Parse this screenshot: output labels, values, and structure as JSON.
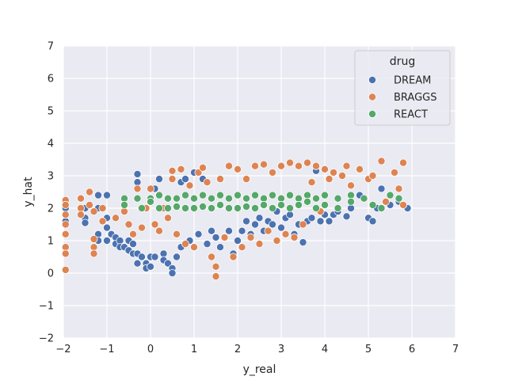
{
  "chart_data": {
    "type": "scatter",
    "xlabel": "y_real",
    "ylabel": "y_hat",
    "xlim": [
      -2,
      7
    ],
    "ylim": [
      -2,
      7
    ],
    "xticks": [
      -2,
      -1,
      0,
      1,
      2,
      3,
      4,
      5,
      6,
      7
    ],
    "yticks": [
      -2,
      -1,
      0,
      1,
      2,
      3,
      4,
      5,
      6,
      7
    ],
    "grid": true,
    "background": "#eaeaf2",
    "legend": {
      "title": "drug",
      "placement": "top-right"
    },
    "series": [
      {
        "name": "DREAM",
        "color": "#4c72b0",
        "points": [
          [
            -1.95,
            2.0
          ],
          [
            -1.95,
            1.6
          ],
          [
            -1.5,
            2.0
          ],
          [
            -1.5,
            1.7
          ],
          [
            -1.5,
            1.55
          ],
          [
            -1.2,
            2.4
          ],
          [
            -1.2,
            2.0
          ],
          [
            -1.2,
            1.2
          ],
          [
            -1.2,
            1.0
          ],
          [
            -1.0,
            2.4
          ],
          [
            -1.0,
            1.7
          ],
          [
            -1.0,
            1.4
          ],
          [
            -1.0,
            1.0
          ],
          [
            -0.9,
            1.2
          ],
          [
            -0.8,
            1.1
          ],
          [
            -0.8,
            0.9
          ],
          [
            -0.7,
            1.0
          ],
          [
            -0.7,
            0.8
          ],
          [
            -0.6,
            0.8
          ],
          [
            -0.5,
            1.0
          ],
          [
            -0.5,
            0.7
          ],
          [
            -0.4,
            0.9
          ],
          [
            -0.4,
            0.6
          ],
          [
            -0.3,
            3.05
          ],
          [
            -0.3,
            2.8
          ],
          [
            -0.3,
            0.6
          ],
          [
            -0.3,
            0.3
          ],
          [
            -0.2,
            0.5
          ],
          [
            -0.1,
            0.3
          ],
          [
            -0.1,
            0.15
          ],
          [
            0.0,
            0.5
          ],
          [
            0.0,
            0.2
          ],
          [
            0.1,
            2.6
          ],
          [
            0.1,
            0.5
          ],
          [
            0.2,
            2.9
          ],
          [
            0.3,
            0.6
          ],
          [
            0.3,
            0.4
          ],
          [
            0.4,
            0.3
          ],
          [
            0.5,
            0.15
          ],
          [
            0.5,
            0.0
          ],
          [
            0.6,
            0.5
          ],
          [
            0.7,
            0.8
          ],
          [
            0.7,
            2.8
          ],
          [
            0.8,
            2.9
          ],
          [
            0.9,
            1.0
          ],
          [
            1.0,
            3.1
          ],
          [
            1.0,
            0.8
          ],
          [
            1.1,
            1.2
          ],
          [
            1.2,
            2.9
          ],
          [
            1.3,
            0.9
          ],
          [
            1.4,
            1.3
          ],
          [
            1.5,
            1.1
          ],
          [
            1.6,
            0.8
          ],
          [
            1.7,
            1.1
          ],
          [
            1.8,
            1.3
          ],
          [
            1.9,
            0.6
          ],
          [
            2.0,
            1.0
          ],
          [
            2.1,
            1.3
          ],
          [
            2.2,
            1.6
          ],
          [
            2.3,
            1.2
          ],
          [
            2.4,
            1.5
          ],
          [
            2.5,
            1.7
          ],
          [
            2.6,
            1.3
          ],
          [
            2.7,
            1.6
          ],
          [
            2.8,
            1.5
          ],
          [
            2.9,
            1.9
          ],
          [
            3.0,
            1.4
          ],
          [
            3.1,
            1.7
          ],
          [
            3.2,
            1.8
          ],
          [
            3.3,
            1.2
          ],
          [
            3.4,
            1.5
          ],
          [
            3.5,
            0.95
          ],
          [
            3.6,
            1.6
          ],
          [
            3.7,
            1.7
          ],
          [
            3.8,
            3.15
          ],
          [
            3.9,
            1.6
          ],
          [
            4.0,
            1.8
          ],
          [
            4.1,
            1.6
          ],
          [
            4.2,
            1.8
          ],
          [
            4.3,
            1.9
          ],
          [
            4.5,
            1.75
          ],
          [
            4.6,
            2.0
          ],
          [
            4.8,
            2.4
          ],
          [
            5.0,
            1.7
          ],
          [
            5.1,
            1.6
          ],
          [
            5.2,
            2.0
          ],
          [
            5.3,
            2.6
          ],
          [
            5.5,
            2.1
          ],
          [
            5.7,
            2.2
          ],
          [
            5.9,
            2.0
          ]
        ]
      },
      {
        "name": "BRAGGS",
        "color": "#dd8452",
        "points": [
          [
            -1.95,
            2.25
          ],
          [
            -1.95,
            2.1
          ],
          [
            -1.95,
            1.8
          ],
          [
            -1.95,
            1.5
          ],
          [
            -1.95,
            1.2
          ],
          [
            -1.95,
            0.8
          ],
          [
            -1.95,
            0.6
          ],
          [
            -1.95,
            0.1
          ],
          [
            -1.6,
            2.3
          ],
          [
            -1.6,
            2.0
          ],
          [
            -1.6,
            1.8
          ],
          [
            -1.4,
            2.5
          ],
          [
            -1.4,
            2.1
          ],
          [
            -1.3,
            1.9
          ],
          [
            -1.3,
            0.8
          ],
          [
            -1.3,
            0.6
          ],
          [
            -1.3,
            1.05
          ],
          [
            -1.1,
            2.0
          ],
          [
            -1.1,
            1.6
          ],
          [
            -0.8,
            1.7
          ],
          [
            -0.6,
            1.9
          ],
          [
            -0.5,
            1.5
          ],
          [
            -0.4,
            1.2
          ],
          [
            -0.3,
            2.6
          ],
          [
            -0.2,
            1.4
          ],
          [
            -0.1,
            2.0
          ],
          [
            0.0,
            2.3
          ],
          [
            0.0,
            2.6
          ],
          [
            0.1,
            1.5
          ],
          [
            0.2,
            1.3
          ],
          [
            0.3,
            2.0
          ],
          [
            0.4,
            1.7
          ],
          [
            0.5,
            3.15
          ],
          [
            0.5,
            2.9
          ],
          [
            0.6,
            1.2
          ],
          [
            0.7,
            3.2
          ],
          [
            0.8,
            0.9
          ],
          [
            0.9,
            2.7
          ],
          [
            1.0,
            0.8
          ],
          [
            1.1,
            3.1
          ],
          [
            1.2,
            3.25
          ],
          [
            1.3,
            2.8
          ],
          [
            1.4,
            0.5
          ],
          [
            1.5,
            -0.1
          ],
          [
            1.5,
            0.2
          ],
          [
            1.6,
            2.9
          ],
          [
            1.7,
            1.1
          ],
          [
            1.8,
            3.3
          ],
          [
            1.9,
            0.5
          ],
          [
            2.0,
            3.2
          ],
          [
            2.1,
            0.8
          ],
          [
            2.2,
            2.9
          ],
          [
            2.3,
            1.1
          ],
          [
            2.4,
            3.3
          ],
          [
            2.5,
            0.9
          ],
          [
            2.6,
            3.35
          ],
          [
            2.7,
            1.3
          ],
          [
            2.8,
            3.1
          ],
          [
            2.9,
            1.0
          ],
          [
            3.0,
            3.3
          ],
          [
            3.1,
            1.2
          ],
          [
            3.2,
            3.4
          ],
          [
            3.3,
            1.1
          ],
          [
            3.4,
            3.3
          ],
          [
            3.5,
            1.5
          ],
          [
            3.6,
            3.4
          ],
          [
            3.7,
            2.8
          ],
          [
            3.8,
            3.3
          ],
          [
            3.9,
            1.9
          ],
          [
            4.0,
            3.2
          ],
          [
            4.1,
            2.9
          ],
          [
            4.2,
            3.1
          ],
          [
            4.3,
            2.0
          ],
          [
            4.4,
            3.0
          ],
          [
            4.5,
            3.3
          ],
          [
            4.6,
            2.7
          ],
          [
            4.8,
            3.2
          ],
          [
            5.0,
            2.9
          ],
          [
            5.1,
            3.0
          ],
          [
            5.3,
            3.45
          ],
          [
            5.4,
            2.2
          ],
          [
            5.6,
            3.1
          ],
          [
            5.7,
            2.6
          ],
          [
            5.8,
            3.4
          ],
          [
            5.8,
            2.1
          ]
        ]
      },
      {
        "name": "REACT",
        "color": "#55a868",
        "points": [
          [
            -0.6,
            2.3
          ],
          [
            -0.6,
            2.1
          ],
          [
            -0.3,
            2.3
          ],
          [
            -0.2,
            2.0
          ],
          [
            0.0,
            2.3
          ],
          [
            0.0,
            2.2
          ],
          [
            0.2,
            2.4
          ],
          [
            0.2,
            2.0
          ],
          [
            0.4,
            2.3
          ],
          [
            0.4,
            2.0
          ],
          [
            0.6,
            2.3
          ],
          [
            0.6,
            2.05
          ],
          [
            0.8,
            2.4
          ],
          [
            0.8,
            2.0
          ],
          [
            1.0,
            2.3
          ],
          [
            1.0,
            2.0
          ],
          [
            1.2,
            2.4
          ],
          [
            1.2,
            2.05
          ],
          [
            1.4,
            2.3
          ],
          [
            1.4,
            2.0
          ],
          [
            1.6,
            2.4
          ],
          [
            1.6,
            2.1
          ],
          [
            1.8,
            2.3
          ],
          [
            1.8,
            2.0
          ],
          [
            2.0,
            2.4
          ],
          [
            2.0,
            2.0
          ],
          [
            2.2,
            2.3
          ],
          [
            2.2,
            2.05
          ],
          [
            2.4,
            2.4
          ],
          [
            2.4,
            2.0
          ],
          [
            2.6,
            2.3
          ],
          [
            2.6,
            2.1
          ],
          [
            2.8,
            2.4
          ],
          [
            2.8,
            2.0
          ],
          [
            3.0,
            2.3
          ],
          [
            3.0,
            2.1
          ],
          [
            3.2,
            2.4
          ],
          [
            3.2,
            2.0
          ],
          [
            3.4,
            2.3
          ],
          [
            3.4,
            2.1
          ],
          [
            3.6,
            2.4
          ],
          [
            3.6,
            2.2
          ],
          [
            3.8,
            2.3
          ],
          [
            3.8,
            2.0
          ],
          [
            4.0,
            2.4
          ],
          [
            4.0,
            2.1
          ],
          [
            4.3,
            2.3
          ],
          [
            4.3,
            2.0
          ],
          [
            4.6,
            2.4
          ],
          [
            4.6,
            2.2
          ],
          [
            4.9,
            2.3
          ],
          [
            5.1,
            2.1
          ],
          [
            5.3,
            2.0
          ],
          [
            5.5,
            2.4
          ],
          [
            5.7,
            2.3
          ]
        ]
      }
    ]
  }
}
